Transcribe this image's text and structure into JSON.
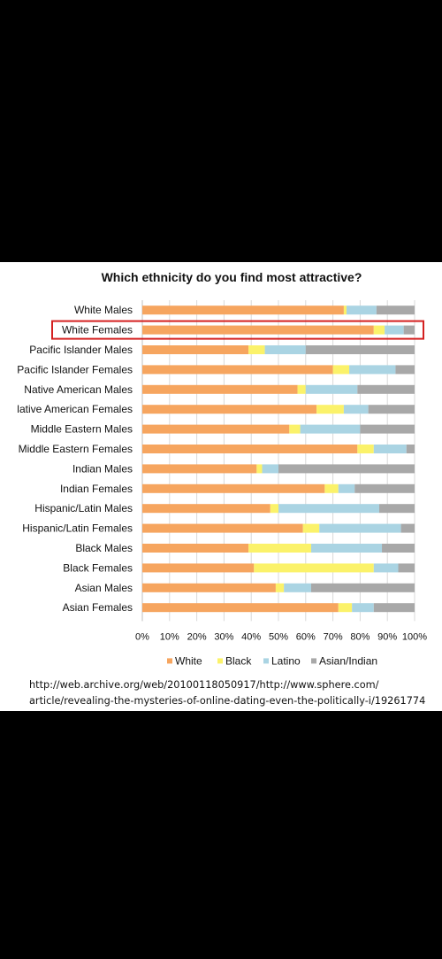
{
  "chart_data": {
    "type": "bar",
    "stacked": true,
    "orientation": "horizontal",
    "title": "Which ethnicity do you find most attractive?",
    "categories": [
      "White Males",
      "White Females",
      "Pacific Islander Males",
      "Pacific Islander Females",
      "Native American Males",
      "lative American Females",
      "Middle Eastern Males",
      "Middle Eastern Females",
      "Indian Males",
      "Indian Females",
      "Hispanic/Latin Males",
      "Hispanic/Latin Females",
      "Black Males",
      "Black Females",
      "Asian Males",
      "Asian Females"
    ],
    "highlighted_category": "White Females",
    "series": [
      {
        "name": "White",
        "color": "#f6a55f",
        "values": [
          74,
          85,
          39,
          70,
          57,
          64,
          54,
          79,
          42,
          67,
          47,
          59,
          39,
          41,
          49,
          72
        ]
      },
      {
        "name": "Black",
        "color": "#fbf26a",
        "values": [
          1,
          4,
          6,
          6,
          3,
          10,
          4,
          6,
          2,
          5,
          3,
          6,
          23,
          44,
          3,
          5
        ]
      },
      {
        "name": "Latino",
        "color": "#aad4e3",
        "values": [
          11,
          7,
          15,
          17,
          19,
          9,
          22,
          12,
          6,
          6,
          37,
          30,
          26,
          9,
          10,
          8
        ]
      },
      {
        "name": "Asian/Indian",
        "color": "#a8a8a8",
        "values": [
          14,
          4,
          40,
          7,
          21,
          17,
          20,
          3,
          50,
          22,
          13,
          5,
          12,
          6,
          38,
          15
        ]
      }
    ],
    "x_ticks": [
      "0%",
      "10%",
      "20%",
      "30%",
      "40%",
      "50%",
      "60%",
      "70%",
      "80%",
      "90%",
      "100%"
    ],
    "xlim": [
      0,
      100
    ],
    "grid": true,
    "legend_position": "bottom"
  },
  "source": {
    "line1": "http://web.archive.org/web/20100118050917/http://www.sphere.com/",
    "line2": "article/revealing-the-mysteries-of-online-dating-even-the-politically-i/19261774"
  }
}
